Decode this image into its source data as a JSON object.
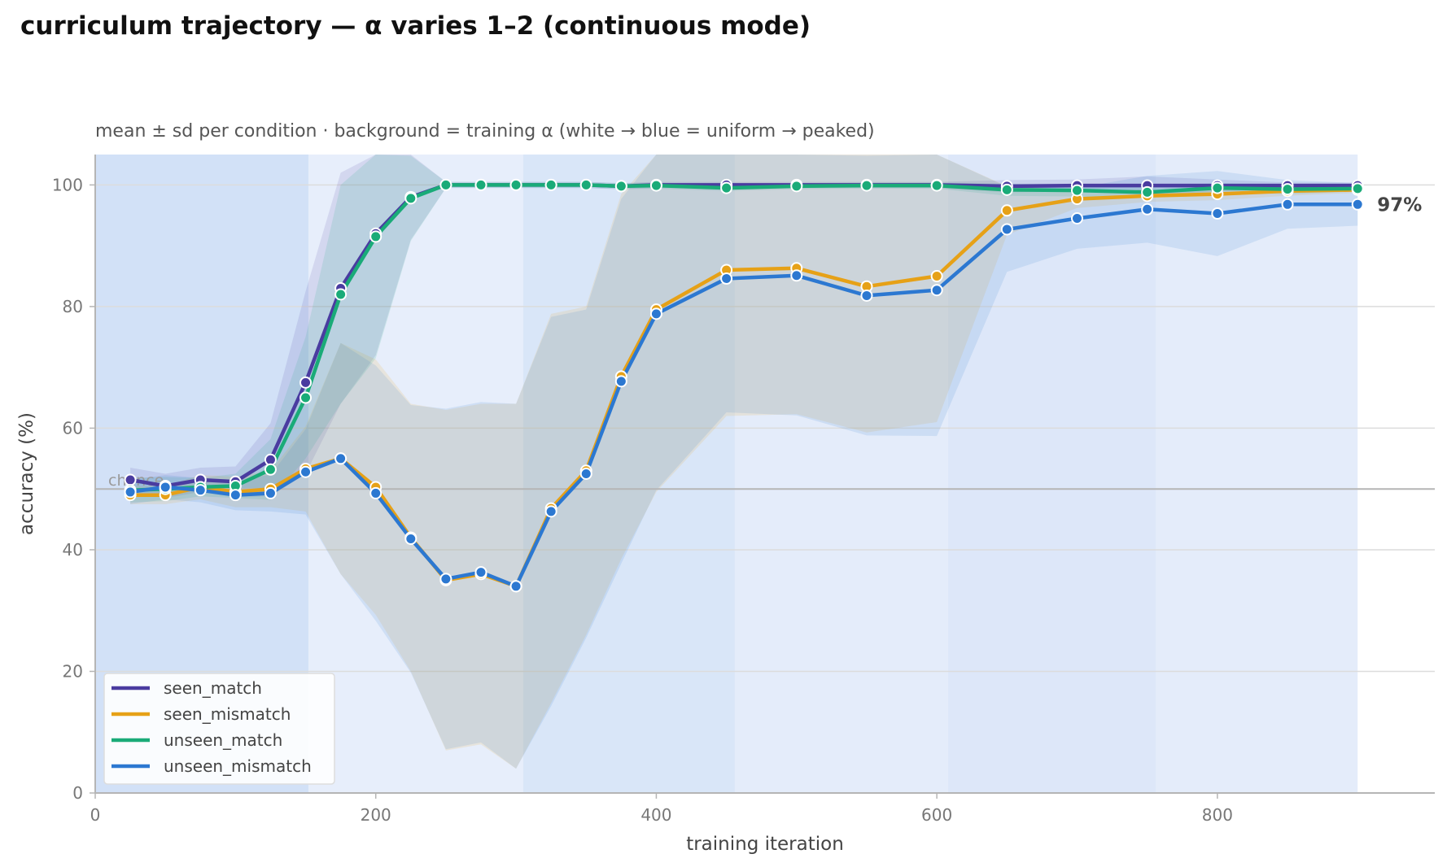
{
  "chart_data": {
    "type": "line",
    "title": "curriculum trajectory — α varies 1–2 (continuous mode)",
    "subtitle": "mean ± sd per condition · background = training α (white → blue = uniform → peaked)",
    "xlabel": "training iteration",
    "ylabel": "accuracy (%)",
    "xlim": [
      0,
      955
    ],
    "ylim": [
      0,
      105
    ],
    "xticks": [
      0,
      200,
      400,
      600,
      800
    ],
    "yticks": [
      0,
      20,
      40,
      60,
      80,
      100
    ],
    "grid": "horizontal",
    "legend_position": "bottom-left",
    "reference_line": {
      "y": 50,
      "label": "chance"
    },
    "end_annotation": "97%",
    "x": [
      25,
      50,
      75,
      100,
      125,
      150,
      175,
      200,
      225,
      250,
      275,
      300,
      325,
      350,
      375,
      400,
      450,
      500,
      550,
      600,
      650,
      700,
      750,
      800,
      850,
      900
    ],
    "background_alpha_bands": [
      {
        "x0": 0,
        "x1": 152,
        "intensity": "peaked",
        "color": "#d2e1f7"
      },
      {
        "x0": 152,
        "x1": 305,
        "intensity": "light",
        "color": "#e7eefb"
      },
      {
        "x0": 305,
        "x1": 456,
        "intensity": "medium",
        "color": "#d9e6f8"
      },
      {
        "x0": 456,
        "x1": 608,
        "intensity": "light",
        "color": "#e4ecfa"
      },
      {
        "x0": 608,
        "x1": 756,
        "intensity": "medium",
        "color": "#dde7f9"
      },
      {
        "x0": 756,
        "x1": 900,
        "intensity": "light",
        "color": "#e4ecfa"
      }
    ],
    "series": [
      {
        "name": "seen_match",
        "color": "#4a3ca0",
        "values": [
          51.5,
          50.5,
          51.5,
          51.2,
          54.8,
          67.5,
          83,
          92,
          98,
          100,
          100,
          100,
          100,
          100,
          99.8,
          100,
          100,
          100,
          100,
          100,
          99.8,
          99.9,
          99.9,
          99.9,
          99.9,
          99.9
        ],
        "sd": [
          2,
          2,
          2,
          2.5,
          6,
          15,
          19,
          20,
          7,
          0.5,
          0.5,
          0.5,
          0.5,
          0.5,
          0.5,
          0.5,
          0.5,
          0.5,
          0.5,
          0.5,
          1,
          1,
          1.5,
          1,
          0.5,
          0.5
        ]
      },
      {
        "name": "seen_mismatch",
        "color": "#e6a117",
        "values": [
          49,
          49,
          50.3,
          49.5,
          50,
          53.3,
          55,
          50.3,
          42,
          35,
          36,
          34,
          46.8,
          53,
          68.5,
          79.5,
          86,
          86.3,
          83.3,
          85,
          95.8,
          97.7,
          98.2,
          98.5,
          99,
          99.2
        ],
        "sd": [
          1.5,
          1.5,
          2,
          2.5,
          3,
          7,
          19,
          21,
          22,
          28,
          28,
          30,
          32,
          27,
          30,
          30,
          24,
          24,
          24,
          24,
          4,
          1.5,
          1,
          1,
          0.8,
          0.5
        ]
      },
      {
        "name": "unseen_match",
        "color": "#1aab78",
        "values": [
          49.8,
          50,
          50.3,
          50.5,
          53.2,
          65,
          82,
          91.5,
          97.8,
          100,
          100,
          100,
          100,
          100,
          99.8,
          99.9,
          99.5,
          99.8,
          99.9,
          99.9,
          99.2,
          99.1,
          98.8,
          99.5,
          99.3,
          99.4
        ],
        "sd": [
          2,
          2,
          1.5,
          2,
          5,
          10,
          18,
          20,
          7,
          0.5,
          0.5,
          0.5,
          0.5,
          0.5,
          0.5,
          0.5,
          0.5,
          0.5,
          0.5,
          0.5,
          1,
          1,
          1,
          0.8,
          0.8,
          0.5
        ]
      },
      {
        "name": "unseen_mismatch",
        "color": "#2c78d1",
        "values": [
          49.5,
          50.3,
          49.8,
          49,
          49.3,
          52.8,
          55,
          49.3,
          41.8,
          35.2,
          36.3,
          34,
          46.3,
          52.5,
          67.7,
          78.8,
          84.6,
          85.1,
          81.8,
          82.7,
          92.7,
          94.5,
          96,
          95.3,
          96.8,
          96.8
        ],
        "sd": [
          2,
          2,
          2,
          2.5,
          3,
          7,
          19,
          21,
          22,
          28,
          28,
          30,
          32,
          27,
          30,
          29,
          22,
          23,
          23,
          24,
          7,
          5,
          5.5,
          7,
          4,
          3.5
        ]
      }
    ]
  }
}
